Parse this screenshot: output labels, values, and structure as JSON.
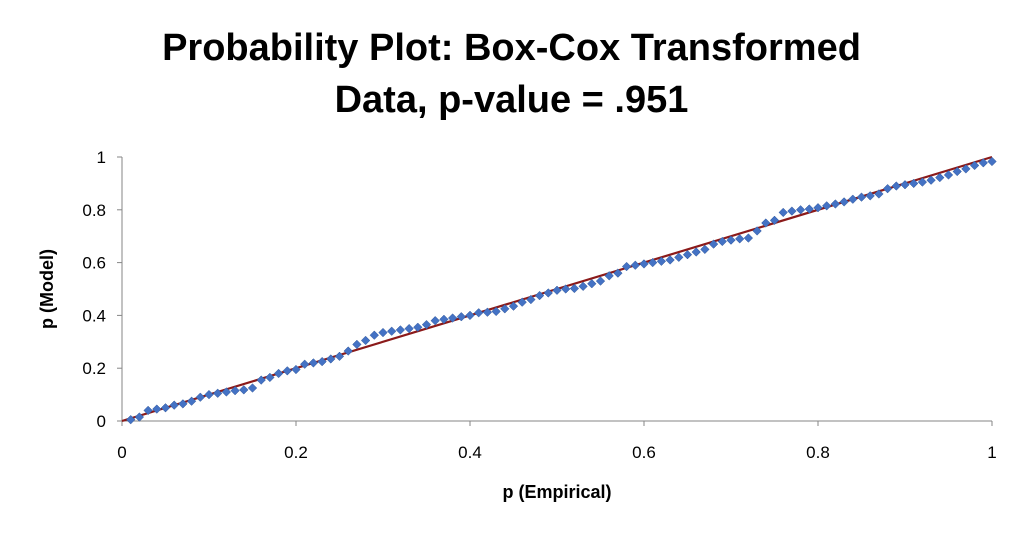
{
  "chart_data": {
    "type": "scatter",
    "title_lines": [
      "Probability Plot:  Box-Cox Transformed",
      "Data, p-value = .951"
    ],
    "xlabel": "p (Empirical)",
    "ylabel": "p (Model)",
    "xlim": [
      0,
      1
    ],
    "ylim": [
      0,
      1
    ],
    "xticks": [
      "0",
      "0.2",
      "0.4",
      "0.6",
      "0.8",
      "1"
    ],
    "yticks": [
      "0",
      "0.2",
      "0.4",
      "0.6",
      "0.8",
      "1"
    ],
    "grid": false,
    "legend": "none",
    "point_color": "#4472C4",
    "line_color": "#8B1A1A",
    "reference_line": {
      "x": [
        0,
        1
      ],
      "y": [
        0,
        1
      ]
    },
    "series": [
      {
        "x": [
          0.01,
          0.02,
          0.03,
          0.04,
          0.05,
          0.06,
          0.07,
          0.08,
          0.09,
          0.1,
          0.11,
          0.12,
          0.13,
          0.14,
          0.15,
          0.16,
          0.17,
          0.18,
          0.19,
          0.2,
          0.21,
          0.22,
          0.23,
          0.24,
          0.25,
          0.26,
          0.27,
          0.28,
          0.29,
          0.3,
          0.31,
          0.32,
          0.33,
          0.34,
          0.35,
          0.36,
          0.37,
          0.38,
          0.39,
          0.4,
          0.41,
          0.42,
          0.43,
          0.44,
          0.45,
          0.46,
          0.47,
          0.48,
          0.49,
          0.5,
          0.51,
          0.52,
          0.53,
          0.54,
          0.55,
          0.56,
          0.57,
          0.58,
          0.59,
          0.6,
          0.61,
          0.62,
          0.63,
          0.64,
          0.65,
          0.66,
          0.67,
          0.68,
          0.69,
          0.7,
          0.71,
          0.72,
          0.73,
          0.74,
          0.75,
          0.76,
          0.77,
          0.78,
          0.79,
          0.8,
          0.81,
          0.82,
          0.83,
          0.84,
          0.85,
          0.86,
          0.87,
          0.88,
          0.89,
          0.9,
          0.91,
          0.92,
          0.93,
          0.94,
          0.95,
          0.96,
          0.97,
          0.98,
          0.99,
          1.0
        ],
        "y": [
          0.005,
          0.015,
          0.04,
          0.045,
          0.05,
          0.06,
          0.065,
          0.075,
          0.09,
          0.1,
          0.105,
          0.11,
          0.115,
          0.118,
          0.125,
          0.155,
          0.165,
          0.18,
          0.19,
          0.195,
          0.215,
          0.22,
          0.225,
          0.235,
          0.245,
          0.265,
          0.29,
          0.305,
          0.325,
          0.335,
          0.34,
          0.345,
          0.35,
          0.355,
          0.365,
          0.38,
          0.385,
          0.39,
          0.395,
          0.4,
          0.41,
          0.412,
          0.415,
          0.425,
          0.435,
          0.45,
          0.46,
          0.475,
          0.485,
          0.495,
          0.5,
          0.502,
          0.51,
          0.52,
          0.53,
          0.55,
          0.56,
          0.585,
          0.59,
          0.595,
          0.6,
          0.605,
          0.61,
          0.62,
          0.63,
          0.64,
          0.65,
          0.67,
          0.68,
          0.685,
          0.69,
          0.693,
          0.72,
          0.75,
          0.76,
          0.79,
          0.795,
          0.8,
          0.803,
          0.808,
          0.815,
          0.822,
          0.83,
          0.84,
          0.848,
          0.853,
          0.86,
          0.88,
          0.89,
          0.895,
          0.9,
          0.905,
          0.912,
          0.922,
          0.932,
          0.945,
          0.955,
          0.968,
          0.978,
          0.983
        ]
      }
    ]
  }
}
